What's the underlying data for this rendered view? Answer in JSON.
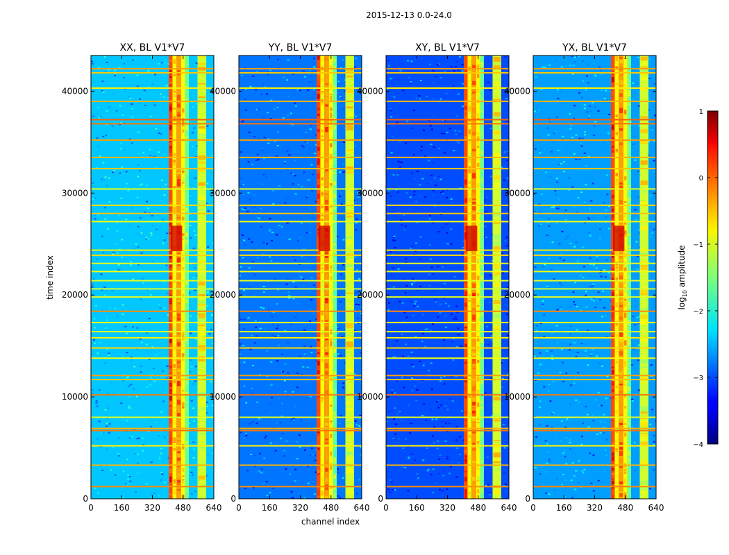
{
  "chart_data": {
    "type": "heatmap",
    "title": "2015-12-13 0.0-24.0",
    "xlabel": "channel index",
    "ylabel": "time index",
    "xlim": [
      0,
      640
    ],
    "ylim": [
      0,
      43500
    ],
    "xticks": [
      0,
      160,
      320,
      480,
      640
    ],
    "yticks": [
      0,
      10000,
      20000,
      30000,
      40000
    ],
    "panels": [
      {
        "title": "XX, BL V1*V7",
        "base_level": -2.4
      },
      {
        "title": "YY, BL V1*V7",
        "base_level": -2.8
      },
      {
        "title": "XY, BL V1*V7",
        "base_level": -3.0
      },
      {
        "title": "YX, BL V1*V7",
        "base_level": -2.6
      }
    ],
    "colorbar": {
      "label": "log",
      "label_subscript": "10",
      "label_suffix": " amplitude",
      "range": [
        -4,
        1
      ],
      "ticks": [
        -4,
        -3,
        -2,
        -1,
        0,
        1
      ],
      "tick_labels": [
        "−4",
        "−3",
        "−2",
        "−1",
        "0",
        "1"
      ],
      "colormap": "jet"
    },
    "bright_channel_bands": [
      {
        "from": 405,
        "to": 425,
        "level": 0.0
      },
      {
        "from": 425,
        "to": 445,
        "level": -0.9
      },
      {
        "from": 445,
        "to": 470,
        "level": -0.4
      },
      {
        "from": 470,
        "to": 490,
        "level": -0.9
      },
      {
        "from": 490,
        "to": 510,
        "level": -1.6
      },
      {
        "from": 555,
        "to": 600,
        "level": -1.1
      }
    ],
    "bright_time_rows": [
      {
        "at": 1200,
        "level": -0.3
      },
      {
        "at": 3300,
        "level": -0.5
      },
      {
        "at": 5200,
        "level": -0.8
      },
      {
        "at": 6700,
        "level": -0.2
      },
      {
        "at": 6900,
        "level": -0.5
      },
      {
        "at": 8000,
        "level": -1.0
      },
      {
        "at": 10200,
        "level": -0.2
      },
      {
        "at": 11700,
        "level": -0.6
      },
      {
        "at": 12100,
        "level": -0.4
      },
      {
        "at": 13800,
        "level": -0.9
      },
      {
        "at": 14800,
        "level": -0.7
      },
      {
        "at": 15800,
        "level": -0.8
      },
      {
        "at": 16400,
        "level": -1.0
      },
      {
        "at": 17300,
        "level": -0.9
      },
      {
        "at": 18400,
        "level": -0.3
      },
      {
        "at": 19800,
        "level": -1.0
      },
      {
        "at": 20600,
        "level": -1.1
      },
      {
        "at": 21400,
        "level": -1.0
      },
      {
        "at": 22300,
        "level": -0.9
      },
      {
        "at": 23100,
        "level": -1.0
      },
      {
        "at": 23900,
        "level": -0.7
      },
      {
        "at": 24400,
        "level": -0.8
      },
      {
        "at": 27200,
        "level": -0.9
      },
      {
        "at": 28000,
        "level": -0.6
      },
      {
        "at": 28800,
        "level": -0.7
      },
      {
        "at": 30400,
        "level": -1.0
      },
      {
        "at": 32400,
        "level": -0.6
      },
      {
        "at": 33500,
        "level": -0.5
      },
      {
        "at": 35200,
        "level": -0.4
      },
      {
        "at": 36800,
        "level": -0.2
      },
      {
        "at": 37200,
        "level": -0.1
      },
      {
        "at": 39000,
        "level": -0.5
      },
      {
        "at": 40300,
        "level": -0.8
      },
      {
        "at": 41800,
        "level": -0.6
      },
      {
        "at": 42200,
        "level": -0.4
      }
    ],
    "burst": {
      "from_channel": 415,
      "to_channel": 475,
      "from_time": 24300,
      "to_time": 26800,
      "level": 0.6
    }
  }
}
